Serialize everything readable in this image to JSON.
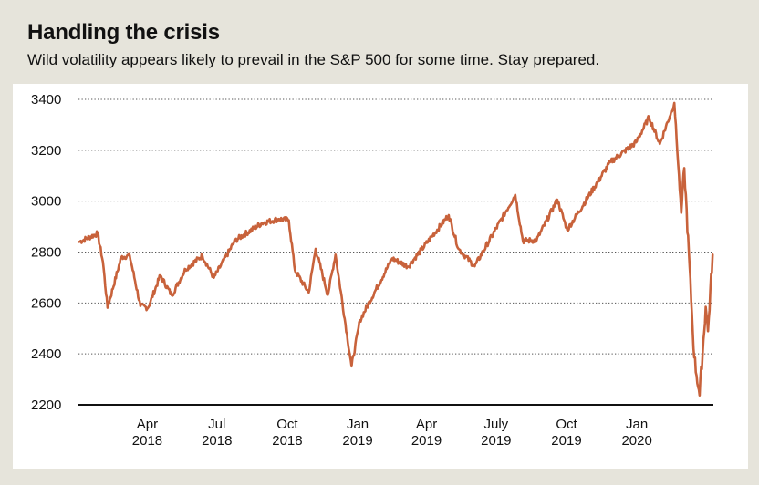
{
  "title": "Handling the crisis",
  "subtitle": "Wild volatility appears likely to prevail in the S&P 500 for some time. Stay prepared.",
  "chart_data": {
    "type": "line",
    "series": [
      {
        "values": [
          [
            "2018-01-02",
            2840
          ],
          [
            "2018-01-26",
            2873
          ],
          [
            "2018-02-02",
            2762
          ],
          [
            "2018-02-08",
            2581
          ],
          [
            "2018-02-26",
            2780
          ],
          [
            "2018-03-09",
            2786
          ],
          [
            "2018-03-23",
            2588
          ],
          [
            "2018-04-02",
            2581
          ],
          [
            "2018-04-18",
            2708
          ],
          [
            "2018-05-03",
            2630
          ],
          [
            "2018-05-21",
            2733
          ],
          [
            "2018-06-12",
            2786
          ],
          [
            "2018-06-27",
            2699
          ],
          [
            "2018-07-25",
            2846
          ],
          [
            "2018-08-29",
            2914
          ],
          [
            "2018-09-20",
            2930
          ],
          [
            "2018-10-03",
            2925
          ],
          [
            "2018-10-11",
            2728
          ],
          [
            "2018-10-29",
            2641
          ],
          [
            "2018-11-07",
            2813
          ],
          [
            "2018-11-23",
            2632
          ],
          [
            "2018-12-03",
            2790
          ],
          [
            "2018-12-24",
            2351
          ],
          [
            "2019-01-04",
            2532
          ],
          [
            "2019-02-15",
            2775
          ],
          [
            "2019-03-08",
            2743
          ],
          [
            "2019-04-30",
            2945
          ],
          [
            "2019-05-13",
            2812
          ],
          [
            "2019-06-03",
            2744
          ],
          [
            "2019-07-26",
            3025
          ],
          [
            "2019-08-05",
            2844
          ],
          [
            "2019-08-23",
            2847
          ],
          [
            "2019-09-19",
            3006
          ],
          [
            "2019-10-02",
            2887
          ],
          [
            "2019-11-27",
            3153
          ],
          [
            "2019-12-31",
            3231
          ],
          [
            "2020-01-17",
            3330
          ],
          [
            "2020-01-31",
            3225
          ],
          [
            "2020-02-19",
            3386
          ],
          [
            "2020-02-28",
            2954
          ],
          [
            "2020-03-03",
            3130
          ],
          [
            "2020-03-16",
            2386
          ],
          [
            "2020-03-23",
            2237
          ],
          [
            "2020-03-31",
            2585
          ],
          [
            "2020-04-03",
            2489
          ],
          [
            "2020-04-09",
            2790
          ]
        ]
      }
    ],
    "x_ticks": [
      {
        "date": "2018-04-01",
        "line1": "Apr",
        "line2": "2018"
      },
      {
        "date": "2018-07-01",
        "line1": "Jul",
        "line2": "2018"
      },
      {
        "date": "2018-10-01",
        "line1": "Oct",
        "line2": "2018"
      },
      {
        "date": "2019-01-01",
        "line1": "Jan",
        "line2": "2019"
      },
      {
        "date": "2019-04-01",
        "line1": "Apr",
        "line2": "2019"
      },
      {
        "date": "2019-07-01",
        "line1": "July",
        "line2": "2019"
      },
      {
        "date": "2019-10-01",
        "line1": "Oct",
        "line2": "2019"
      },
      {
        "date": "2020-01-01",
        "line1": "Jan",
        "line2": "2020"
      }
    ],
    "xlim": [
      "2018-01-01",
      "2020-04-10"
    ],
    "y_ticks": [
      3400,
      3200,
      3000,
      2800,
      2600,
      2400,
      2200
    ],
    "ylim": [
      2200,
      3400
    ],
    "grid": "horizontal dotted",
    "line_color": "#c8623b"
  }
}
